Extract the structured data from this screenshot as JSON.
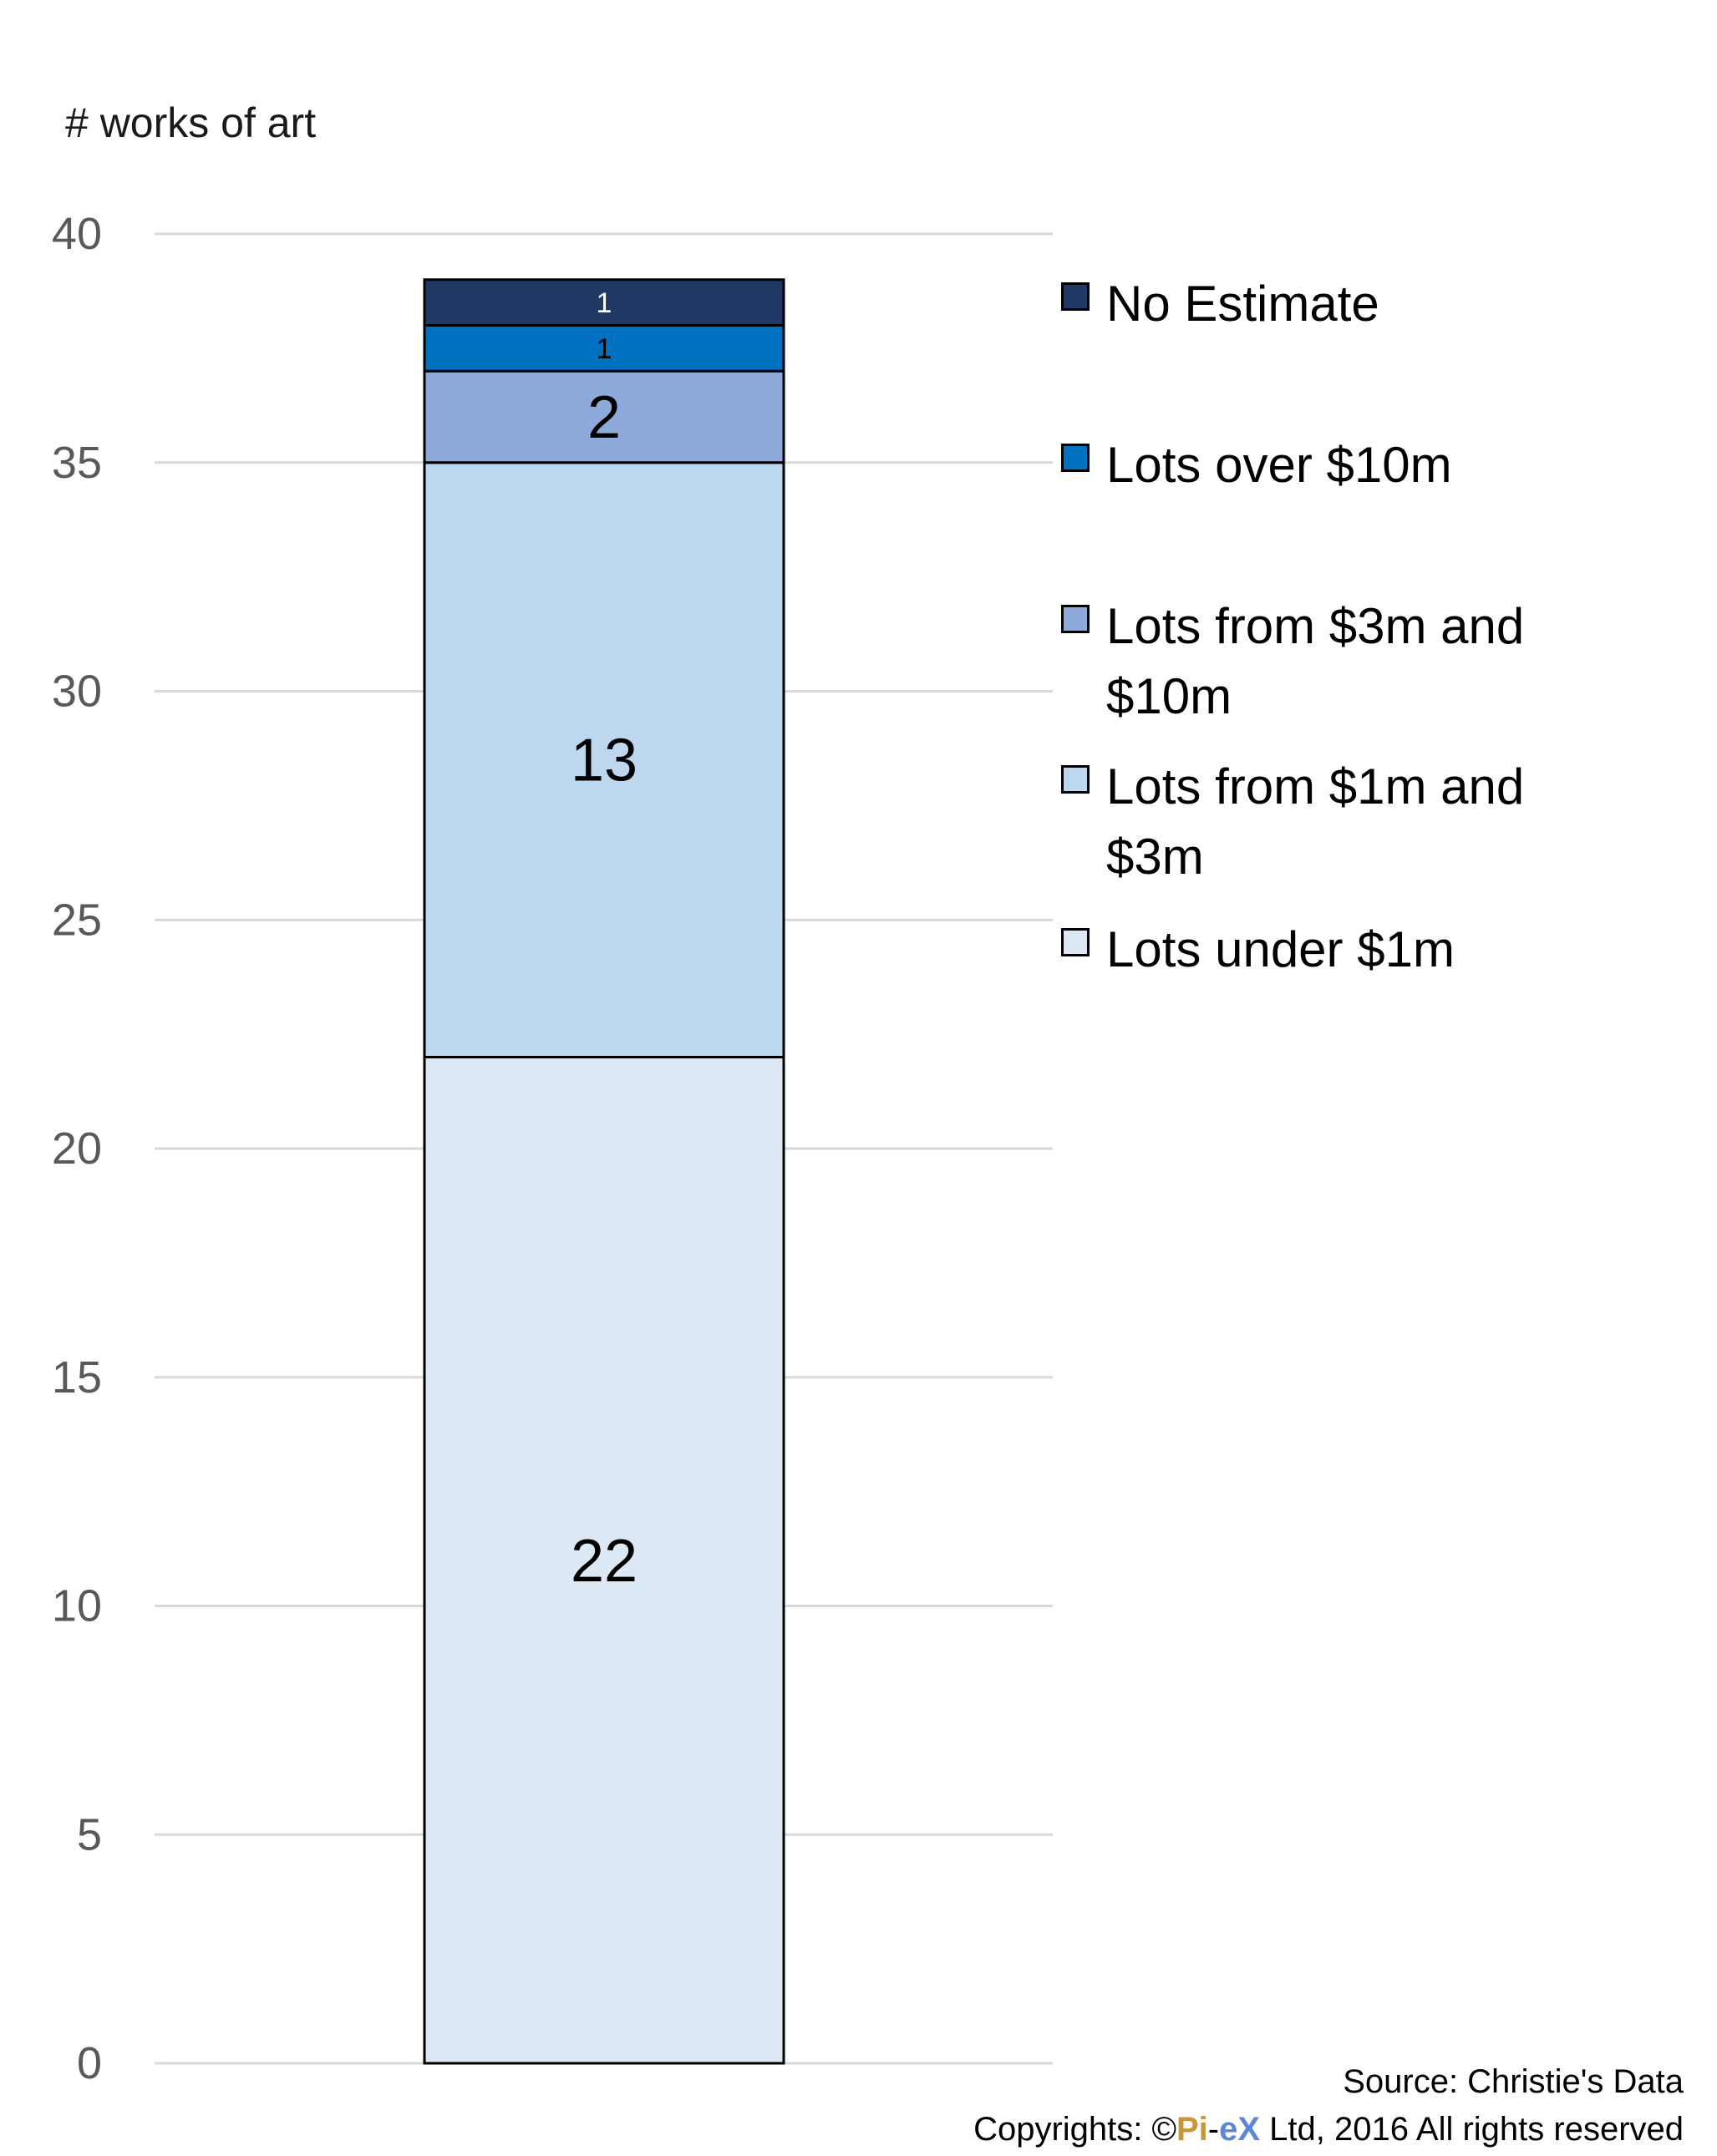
{
  "chart_data": {
    "type": "bar",
    "stacked": true,
    "ylabel": "# works of art",
    "xlabel": "",
    "title": "",
    "ylim": [
      0,
      40
    ],
    "yticks": [
      0,
      5,
      10,
      15,
      20,
      25,
      30,
      35,
      40
    ],
    "grid": true,
    "legend_position": "right",
    "series": [
      {
        "name": "Lots under $1m",
        "value": 22,
        "color": "#dde8f5"
      },
      {
        "name": "Lots from $1m and $3m",
        "value": 13,
        "color": "#bdd7ee"
      },
      {
        "name": "Lots from $3m and $10m",
        "value": 2,
        "color": "#8eaadb"
      },
      {
        "name": "Lots over $10m",
        "value": 1,
        "color": "#0070c0"
      },
      {
        "name": "No Estimate",
        "value": 1,
        "color": "#203864"
      }
    ],
    "legend_order": [
      "No Estimate",
      "Lots over $10m",
      "Lots from $3m and $10m",
      "Lots from $1m and $3m",
      "Lots under $1m"
    ]
  },
  "footer": {
    "source": "Source: Christie's Data",
    "copyright_prefix": "Copyrights: ©",
    "brand_pi": "Pi",
    "brand_dash": "-",
    "brand_ex": "eX",
    "copyright_suffix": " Ltd, 2016 All rights reserved"
  }
}
